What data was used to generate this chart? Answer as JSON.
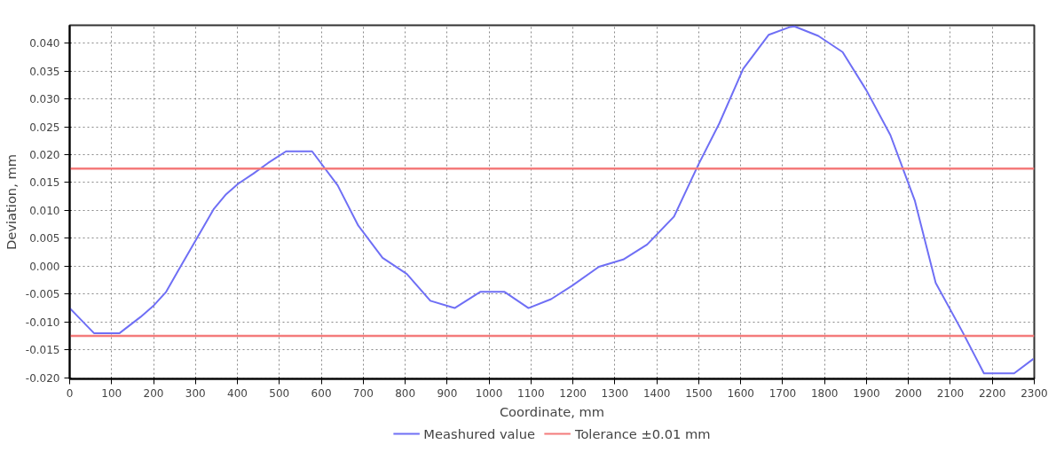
{
  "chart_data": {
    "type": "line",
    "xlabel": "Coordinate, mm",
    "ylabel": "Deviation, mm",
    "x": [
      0,
      58,
      119,
      169,
      201,
      230,
      258,
      301,
      344,
      373,
      402,
      438,
      473,
      516,
      578,
      639,
      688,
      746,
      804,
      860,
      918,
      979,
      1037,
      1094,
      1148,
      1198,
      1262,
      1320,
      1377,
      1441,
      1499,
      1549,
      1606,
      1667,
      1718,
      1728,
      1785,
      1843,
      1900,
      1957,
      2015,
      2065,
      2129,
      2180,
      2252,
      2298
    ],
    "series": [
      {
        "name": "Meashured value",
        "color": "#6f6ff5",
        "values": [
          -0.0075,
          -0.012,
          -0.012,
          -0.0091,
          -0.007,
          -0.0046,
          -0.0009,
          0.0047,
          0.0103,
          0.0129,
          0.0148,
          0.0166,
          0.0185,
          0.0206,
          0.0206,
          0.0145,
          0.0073,
          0.0015,
          -0.0014,
          -0.0062,
          -0.0075,
          -0.0046,
          -0.0046,
          -0.0075,
          -0.0059,
          -0.0035,
          -0.0001,
          0.0012,
          0.0039,
          0.0089,
          0.0182,
          0.0256,
          0.0354,
          0.0415,
          0.0429,
          0.043,
          0.0413,
          0.0384,
          0.0315,
          0.0235,
          0.0118,
          -0.003,
          -0.0118,
          -0.0192,
          -0.0192,
          -0.0166
        ]
      }
    ],
    "ref_lines": [
      {
        "axis": "y",
        "value": 0.0175,
        "label": "Tolerance ±0.01 mm",
        "color": "#f47b7b"
      },
      {
        "axis": "y",
        "value": -0.0125,
        "color": "#f47b7b"
      }
    ],
    "xlim": [
      0,
      2300
    ],
    "ylim": [
      -0.0202,
      0.0432
    ],
    "xticks": [
      0,
      100,
      200,
      300,
      400,
      500,
      600,
      700,
      800,
      900,
      1000,
      1100,
      1200,
      1300,
      1400,
      1500,
      1600,
      1700,
      1800,
      1900,
      2000,
      2100,
      2200,
      2300
    ],
    "yticks": [
      {
        "value": -0.02,
        "label": "-0.020"
      },
      {
        "value": -0.015,
        "label": "-0.015"
      },
      {
        "value": -0.01,
        "label": "-0.010"
      },
      {
        "value": -0.005,
        "label": "-0.005"
      },
      {
        "value": 0,
        "label": "0.000"
      },
      {
        "value": 0.005,
        "label": "0.005"
      },
      {
        "value": 0.01,
        "label": "0.010"
      },
      {
        "value": 0.015,
        "label": "0.015"
      },
      {
        "value": 0.02,
        "label": "0.020"
      },
      {
        "value": 0.025,
        "label": "0.025"
      },
      {
        "value": 0.03,
        "label": "0.030"
      },
      {
        "value": 0.035,
        "label": "0.035"
      },
      {
        "value": 0.04,
        "label": "0.040"
      }
    ],
    "grid": true,
    "legend": "bottom",
    "line_style": "solid",
    "marker": "none"
  }
}
